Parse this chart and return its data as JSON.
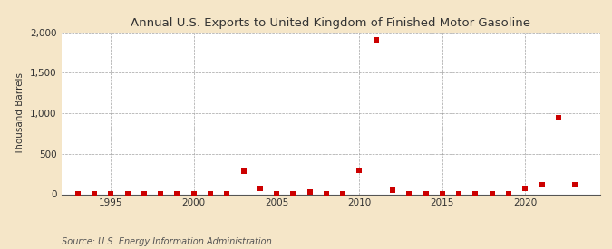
{
  "title": "Annual U.S. Exports to United Kingdom of Finished Motor Gasoline",
  "ylabel": "Thousand Barrels",
  "source": "Source: U.S. Energy Information Administration",
  "background_color": "#f5e6c8",
  "plot_bg_color": "#ffffff",
  "marker_color": "#cc0000",
  "years": [
    1993,
    1994,
    1995,
    1996,
    1997,
    1998,
    1999,
    2000,
    2001,
    2002,
    2003,
    2004,
    2005,
    2006,
    2007,
    2008,
    2009,
    2010,
    2011,
    2012,
    2013,
    2014,
    2015,
    2016,
    2017,
    2018,
    2019,
    2020,
    2021,
    2022,
    2023
  ],
  "values": [
    3,
    3,
    3,
    3,
    3,
    3,
    3,
    3,
    3,
    3,
    290,
    75,
    3,
    3,
    30,
    3,
    3,
    300,
    1910,
    55,
    3,
    3,
    3,
    3,
    3,
    3,
    3,
    70,
    115,
    940,
    120
  ],
  "ylim": [
    0,
    2000
  ],
  "yticks": [
    0,
    500,
    1000,
    1500,
    2000
  ],
  "xticks": [
    1995,
    2000,
    2005,
    2010,
    2015,
    2020
  ],
  "xlim": [
    1992,
    2024.5
  ],
  "title_fontsize": 9.5,
  "axis_label_fontsize": 7.5,
  "tick_fontsize": 7.5,
  "source_fontsize": 7,
  "marker_size": 14
}
